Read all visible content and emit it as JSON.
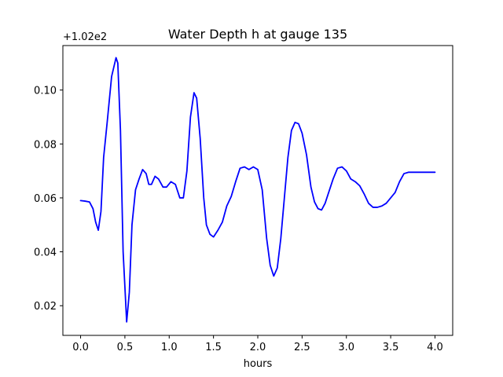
{
  "chart_data": {
    "type": "line",
    "title": "Water Depth h at gauge 135",
    "xlabel": "hours",
    "ylabel": "",
    "y_offset_text": "+1.02e2",
    "y_offset": 102,
    "xlim": [
      -0.2,
      4.2
    ],
    "ylim": [
      0.009,
      0.1165
    ],
    "x_ticks": [
      0.0,
      0.5,
      1.0,
      1.5,
      2.0,
      2.5,
      3.0,
      3.5,
      4.0
    ],
    "x_tick_labels": [
      "0.0",
      "0.5",
      "1.0",
      "1.5",
      "2.0",
      "2.5",
      "3.0",
      "3.5",
      "4.0"
    ],
    "y_ticks": [
      0.02,
      0.04,
      0.06,
      0.08,
      0.1
    ],
    "y_tick_labels": [
      "0.02",
      "0.04",
      "0.06",
      "0.08",
      "0.10"
    ],
    "grid": false,
    "legend": "none",
    "series": [
      {
        "color": "#0000ff",
        "x": [
          0.0,
          0.05,
          0.1,
          0.14,
          0.17,
          0.2,
          0.23,
          0.26,
          0.3,
          0.35,
          0.4,
          0.42,
          0.45,
          0.48,
          0.52,
          0.55,
          0.58,
          0.62,
          0.66,
          0.7,
          0.74,
          0.77,
          0.8,
          0.84,
          0.88,
          0.93,
          0.97,
          1.02,
          1.07,
          1.12,
          1.16,
          1.2,
          1.24,
          1.28,
          1.31,
          1.35,
          1.39,
          1.42,
          1.46,
          1.5,
          1.55,
          1.6,
          1.65,
          1.7,
          1.75,
          1.8,
          1.85,
          1.9,
          1.95,
          2.0,
          2.05,
          2.1,
          2.14,
          2.18,
          2.22,
          2.26,
          2.3,
          2.34,
          2.38,
          2.42,
          2.46,
          2.5,
          2.55,
          2.6,
          2.64,
          2.68,
          2.72,
          2.76,
          2.8,
          2.85,
          2.9,
          2.95,
          3.0,
          3.05,
          3.1,
          3.15,
          3.2,
          3.25,
          3.3,
          3.35,
          3.4,
          3.45,
          3.5,
          3.55,
          3.6,
          3.65,
          3.7,
          3.75,
          3.8,
          3.85,
          3.9,
          3.95,
          4.0
        ],
        "y": [
          0.059,
          0.0588,
          0.0585,
          0.056,
          0.051,
          0.048,
          0.055,
          0.075,
          0.088,
          0.105,
          0.112,
          0.11,
          0.085,
          0.04,
          0.014,
          0.025,
          0.05,
          0.063,
          0.067,
          0.0705,
          0.069,
          0.065,
          0.065,
          0.068,
          0.067,
          0.064,
          0.064,
          0.066,
          0.065,
          0.06,
          0.06,
          0.07,
          0.09,
          0.099,
          0.097,
          0.082,
          0.06,
          0.05,
          0.0465,
          0.0455,
          0.048,
          0.051,
          0.057,
          0.0605,
          0.066,
          0.071,
          0.0715,
          0.0705,
          0.0715,
          0.0705,
          0.063,
          0.045,
          0.035,
          0.031,
          0.034,
          0.045,
          0.06,
          0.075,
          0.085,
          0.088,
          0.0875,
          0.084,
          0.076,
          0.064,
          0.0585,
          0.056,
          0.0555,
          0.058,
          0.062,
          0.067,
          0.071,
          0.0715,
          0.07,
          0.067,
          0.066,
          0.0645,
          0.0615,
          0.058,
          0.0565,
          0.0565,
          0.057,
          0.058,
          0.06,
          0.062,
          0.066,
          0.069,
          0.0695,
          0.0695,
          0.0695,
          0.0695,
          0.0695,
          0.0695,
          0.0695
        ]
      }
    ]
  }
}
